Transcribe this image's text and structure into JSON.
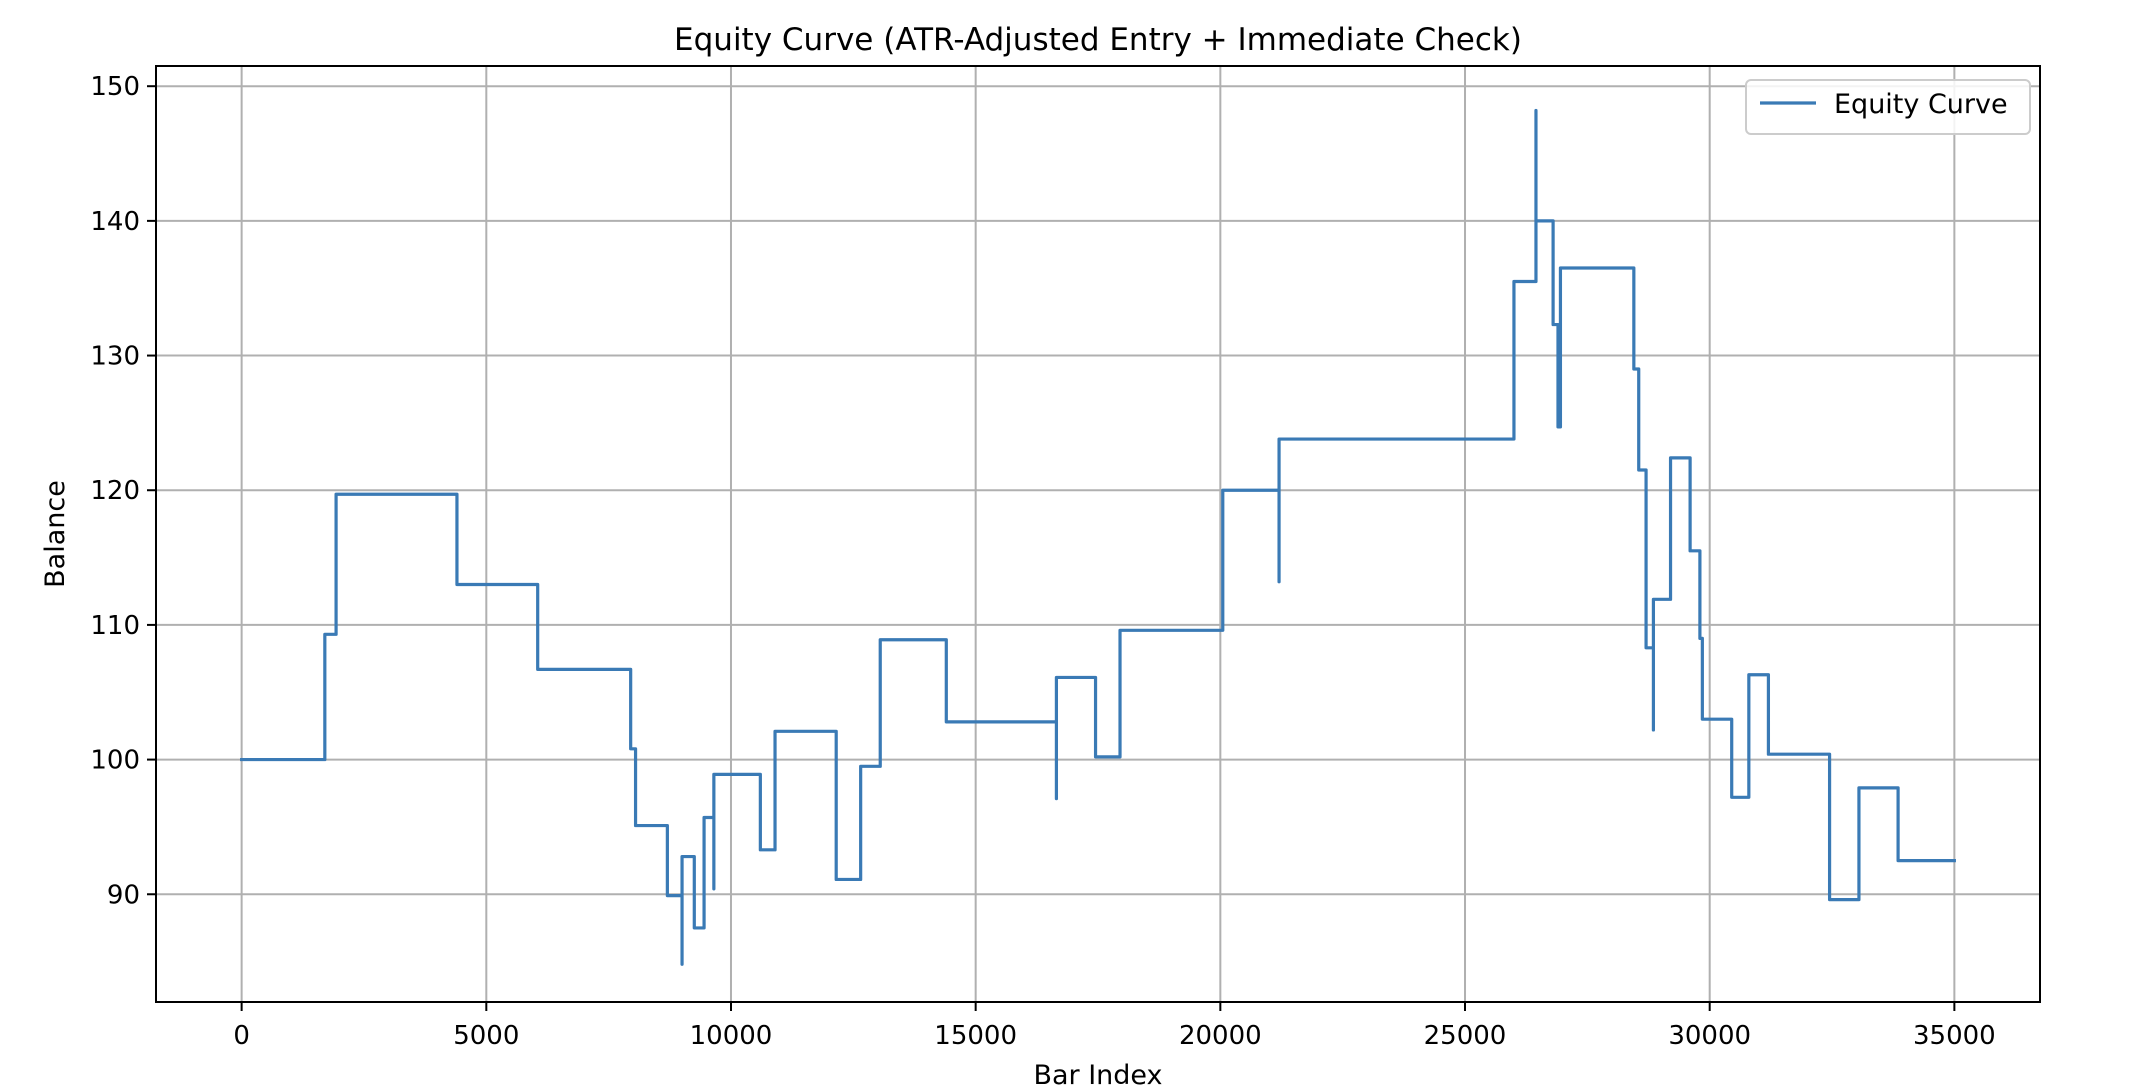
{
  "chart_data": {
    "type": "line",
    "title": "Equity Curve (ATR-Adjusted Entry + Immediate Check)",
    "xlabel": "Bar Index",
    "ylabel": "Balance",
    "xlim": [
      -1750,
      36750
    ],
    "ylim": [
      82,
      151.5
    ],
    "xticks": [
      0,
      5000,
      10000,
      15000,
      20000,
      25000,
      30000,
      35000
    ],
    "yticks": [
      90,
      100,
      110,
      120,
      130,
      140,
      150
    ],
    "grid": true,
    "legend_position": "top-right",
    "series": [
      {
        "name": "Equity Curve",
        "color": "#3a7ab5",
        "style": "step",
        "points": [
          [
            0,
            100.0
          ],
          [
            1700,
            100.0
          ],
          [
            1700,
            109.3
          ],
          [
            1930,
            109.3
          ],
          [
            1930,
            119.7
          ],
          [
            4400,
            119.7
          ],
          [
            4400,
            113.0
          ],
          [
            6050,
            113.0
          ],
          [
            6050,
            106.7
          ],
          [
            7950,
            106.7
          ],
          [
            7950,
            100.8
          ],
          [
            8050,
            100.8
          ],
          [
            8050,
            95.1
          ],
          [
            8700,
            95.1
          ],
          [
            8700,
            89.9
          ],
          [
            9000,
            89.9
          ],
          [
            9000,
            84.8
          ],
          [
            9000,
            92.8
          ],
          [
            9250,
            92.8
          ],
          [
            9250,
            87.5
          ],
          [
            9450,
            87.5
          ],
          [
            9450,
            95.7
          ],
          [
            9650,
            95.7
          ],
          [
            9650,
            90.4
          ],
          [
            9650,
            98.9
          ],
          [
            10600,
            98.9
          ],
          [
            10600,
            93.3
          ],
          [
            10900,
            93.3
          ],
          [
            10900,
            102.1
          ],
          [
            12150,
            102.1
          ],
          [
            12150,
            91.1
          ],
          [
            12650,
            91.1
          ],
          [
            12650,
            99.5
          ],
          [
            13050,
            99.5
          ],
          [
            13050,
            108.9
          ],
          [
            14400,
            108.9
          ],
          [
            14400,
            102.8
          ],
          [
            16650,
            102.8
          ],
          [
            16650,
            97.1
          ],
          [
            16650,
            106.1
          ],
          [
            17450,
            106.1
          ],
          [
            17450,
            100.2
          ],
          [
            17950,
            100.2
          ],
          [
            17950,
            109.6
          ],
          [
            20050,
            109.6
          ],
          [
            20050,
            120.0
          ],
          [
            21200,
            120.0
          ],
          [
            21200,
            113.2
          ],
          [
            21200,
            123.8
          ],
          [
            26000,
            123.8
          ],
          [
            26000,
            135.5
          ],
          [
            26450,
            135.5
          ],
          [
            26450,
            148.2
          ],
          [
            26450,
            140.0
          ],
          [
            26800,
            140.0
          ],
          [
            26800,
            132.3
          ],
          [
            26900,
            132.3
          ],
          [
            26900,
            124.7
          ],
          [
            26950,
            124.7
          ],
          [
            26950,
            136.5
          ],
          [
            28450,
            136.5
          ],
          [
            28450,
            129.0
          ],
          [
            28550,
            129.0
          ],
          [
            28550,
            121.5
          ],
          [
            28700,
            121.5
          ],
          [
            28700,
            108.3
          ],
          [
            28850,
            108.3
          ],
          [
            28850,
            102.2
          ],
          [
            28850,
            111.9
          ],
          [
            29200,
            111.9
          ],
          [
            29200,
            122.4
          ],
          [
            29600,
            122.4
          ],
          [
            29600,
            115.5
          ],
          [
            29800,
            115.5
          ],
          [
            29800,
            109.0
          ],
          [
            29850,
            109.0
          ],
          [
            29850,
            103.0
          ],
          [
            30450,
            103.0
          ],
          [
            30450,
            97.2
          ],
          [
            30800,
            97.2
          ],
          [
            30800,
            106.3
          ],
          [
            31200,
            106.3
          ],
          [
            31200,
            100.4
          ],
          [
            32450,
            100.4
          ],
          [
            32450,
            89.6
          ],
          [
            33050,
            89.6
          ],
          [
            33050,
            97.9
          ],
          [
            33850,
            97.9
          ],
          [
            33850,
            92.5
          ],
          [
            35000,
            92.5
          ]
        ]
      }
    ]
  }
}
